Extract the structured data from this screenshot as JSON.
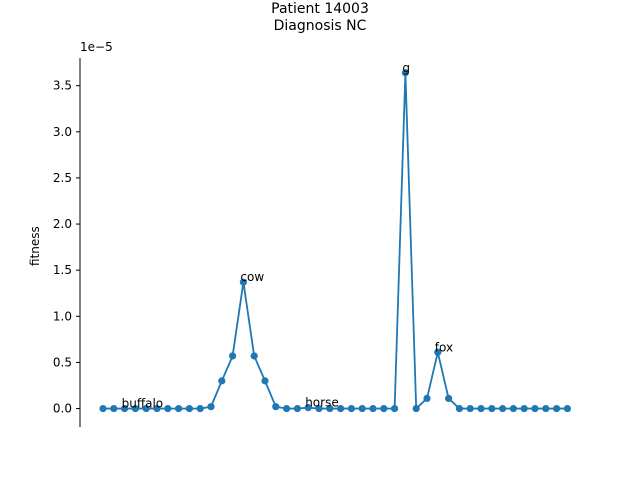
{
  "chart_data": {
    "type": "line",
    "title_line1": "Patient 14003",
    "title_line2": " Diagnosis NC",
    "ylabel": "fitness",
    "y_offset_label": "1e−5",
    "ylim": [
      -2e-06,
      3.8e-05
    ],
    "yticks": [
      0,
      5e-06,
      1e-05,
      1.5e-05,
      2e-05,
      2.5e-05,
      3e-05,
      3.5e-05
    ],
    "ytick_labels": [
      "0.0",
      "0.5",
      "1.0",
      "1.5",
      "2.0",
      "2.5",
      "3.0",
      "3.5"
    ],
    "grid": false,
    "line_color": "#1f77b4",
    "series": [
      {
        "values": [
          0,
          0,
          0,
          0,
          0,
          0,
          0,
          0,
          0,
          0,
          2e-07,
          3e-06,
          5.7e-06,
          1.37e-05,
          5.7e-06,
          3e-06,
          2e-07,
          0,
          0,
          1e-07,
          0,
          0,
          0,
          0,
          0,
          0,
          0,
          0,
          3.64e-05,
          0,
          1.1e-06,
          6.1e-06,
          1.1e-06,
          0,
          0,
          0,
          0,
          0,
          0,
          0,
          0,
          0,
          0,
          0
        ]
      }
    ],
    "annotations": [
      {
        "index": 2,
        "text": "buffalo"
      },
      {
        "index": 13,
        "text": "cow"
      },
      {
        "index": 19,
        "text": "horse"
      },
      {
        "index": 28,
        "text": "g"
      },
      {
        "index": 31,
        "text": "fox"
      }
    ]
  }
}
